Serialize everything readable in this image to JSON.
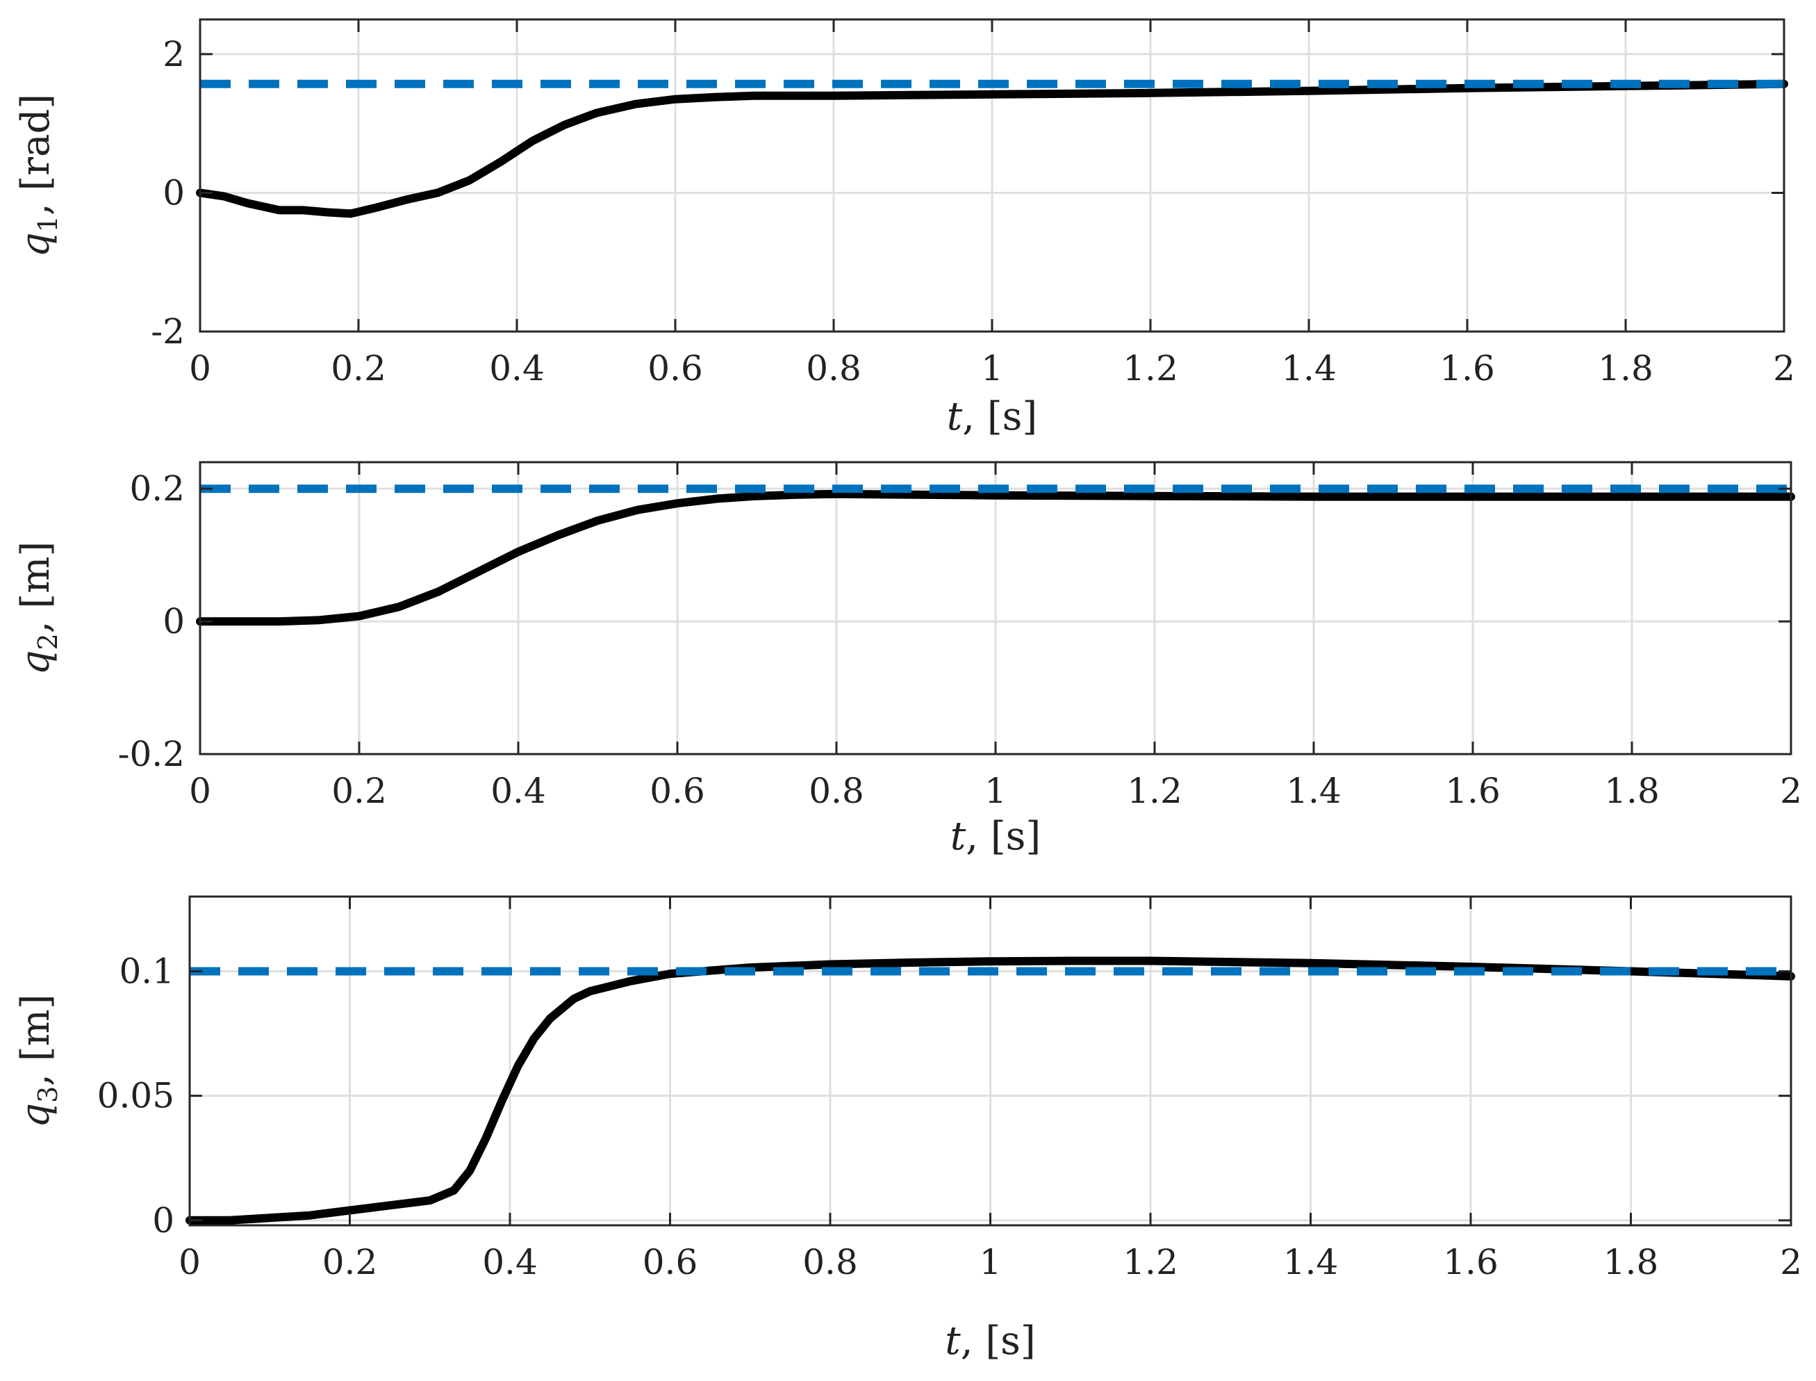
{
  "chart_data": [
    {
      "type": "line",
      "xlabel": "t, [s]",
      "xlabel_var": "t",
      "xlabel_unit": ", [s]",
      "ylabel": "q1, [rad]",
      "ylabel_var": "q",
      "ylabel_sub": "1",
      "ylabel_unit": ", [rad]",
      "xlim": [
        0,
        2
      ],
      "ylim": [
        -2,
        2.5
      ],
      "xticks": [
        0,
        0.2,
        0.4,
        0.6,
        0.8,
        1,
        1.2,
        1.4,
        1.6,
        1.8,
        2
      ],
      "xtick_labels": [
        "0",
        "0.2",
        "0.4",
        "0.6",
        "0.8",
        "1",
        "1.2",
        "1.4",
        "1.6",
        "1.8",
        "2"
      ],
      "yticks": [
        -2,
        0,
        2
      ],
      "ytick_labels": [
        "-2",
        "0",
        "2"
      ],
      "grid": true,
      "series": [
        {
          "style": "solid",
          "color": "#000000",
          "x": [
            0,
            0.03,
            0.06,
            0.1,
            0.13,
            0.16,
            0.19,
            0.22,
            0.26,
            0.3,
            0.34,
            0.38,
            0.42,
            0.46,
            0.5,
            0.55,
            0.6,
            0.65,
            0.7,
            0.8,
            0.9,
            1.0,
            1.2,
            1.4,
            1.6,
            1.8,
            2.0
          ],
          "y": [
            0,
            -0.05,
            -0.15,
            -0.25,
            -0.25,
            -0.28,
            -0.3,
            -0.22,
            -0.1,
            0.0,
            0.18,
            0.45,
            0.75,
            0.98,
            1.15,
            1.28,
            1.35,
            1.38,
            1.4,
            1.4,
            1.41,
            1.42,
            1.44,
            1.47,
            1.51,
            1.54,
            1.57
          ]
        },
        {
          "style": "dashed",
          "color": "#0072bd",
          "x": [
            0,
            2
          ],
          "y": [
            1.5708,
            1.5708
          ]
        }
      ]
    },
    {
      "type": "line",
      "xlabel": "t, [s]",
      "xlabel_var": "t",
      "xlabel_unit": ", [s]",
      "ylabel": "q2, [m]",
      "ylabel_var": "q",
      "ylabel_sub": "2",
      "ylabel_unit": ", [m]",
      "xlim": [
        0,
        2
      ],
      "ylim": [
        -0.2,
        0.24
      ],
      "xticks": [
        0,
        0.2,
        0.4,
        0.6,
        0.8,
        1,
        1.2,
        1.4,
        1.6,
        1.8,
        2
      ],
      "xtick_labels": [
        "0",
        "0.2",
        "0.4",
        "0.6",
        "0.8",
        "1",
        "1.2",
        "1.4",
        "1.6",
        "1.8",
        "2"
      ],
      "yticks": [
        -0.2,
        0,
        0.2
      ],
      "ytick_labels": [
        "-0.2",
        "0",
        "0.2"
      ],
      "grid": true,
      "series": [
        {
          "style": "solid",
          "color": "#000000",
          "x": [
            0,
            0.05,
            0.1,
            0.15,
            0.2,
            0.25,
            0.3,
            0.35,
            0.4,
            0.45,
            0.5,
            0.55,
            0.6,
            0.65,
            0.7,
            0.75,
            0.8,
            0.9,
            1.0,
            1.2,
            1.4,
            1.6,
            1.8,
            2.0
          ],
          "y": [
            0,
            0,
            0,
            0.002,
            0.008,
            0.022,
            0.045,
            0.075,
            0.105,
            0.13,
            0.152,
            0.168,
            0.178,
            0.185,
            0.189,
            0.191,
            0.192,
            0.191,
            0.19,
            0.189,
            0.188,
            0.188,
            0.188,
            0.188
          ]
        },
        {
          "style": "dashed",
          "color": "#0072bd",
          "x": [
            0,
            2
          ],
          "y": [
            0.2,
            0.2
          ]
        }
      ]
    },
    {
      "type": "line",
      "xlabel": "t, [s]",
      "xlabel_var": "t",
      "xlabel_unit": ", [s]",
      "ylabel": "q3, [m]",
      "ylabel_var": "q",
      "ylabel_sub": "3",
      "ylabel_unit": ", [m]",
      "xlim": [
        0,
        2
      ],
      "ylim": [
        -0.002,
        0.13
      ],
      "xticks": [
        0,
        0.2,
        0.4,
        0.6,
        0.8,
        1,
        1.2,
        1.4,
        1.6,
        1.8,
        2
      ],
      "xtick_labels": [
        "0",
        "0.2",
        "0.4",
        "0.6",
        "0.8",
        "1",
        "1.2",
        "1.4",
        "1.6",
        "1.8",
        "2"
      ],
      "yticks": [
        0,
        0.05,
        0.1
      ],
      "ytick_labels": [
        "0",
        "0.05",
        "0.1"
      ],
      "grid": true,
      "series": [
        {
          "style": "solid",
          "color": "#000000",
          "x": [
            0,
            0.05,
            0.1,
            0.15,
            0.2,
            0.25,
            0.3,
            0.33,
            0.35,
            0.37,
            0.39,
            0.41,
            0.43,
            0.45,
            0.48,
            0.5,
            0.55,
            0.6,
            0.7,
            0.8,
            0.9,
            1.0,
            1.1,
            1.2,
            1.4,
            1.6,
            1.8,
            2.0
          ],
          "y": [
            0,
            0,
            0.001,
            0.002,
            0.004,
            0.006,
            0.008,
            0.012,
            0.02,
            0.033,
            0.048,
            0.062,
            0.073,
            0.081,
            0.089,
            0.092,
            0.096,
            0.099,
            0.1015,
            0.1028,
            0.1035,
            0.104,
            0.1042,
            0.1042,
            0.1033,
            0.1018,
            0.1,
            0.098
          ]
        },
        {
          "style": "dashed",
          "color": "#0072bd",
          "x": [
            0,
            2
          ],
          "y": [
            0.1,
            0.1
          ]
        }
      ]
    }
  ]
}
